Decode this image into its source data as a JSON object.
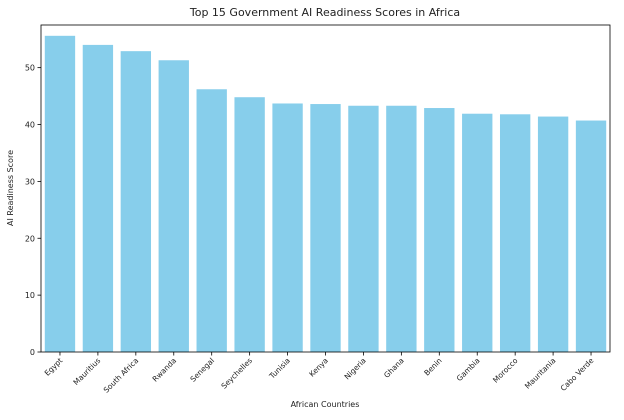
{
  "chart_data": {
    "type": "bar",
    "title": "Top 15 Government AI Readiness Scores in Africa",
    "xlabel": "African Countries",
    "ylabel": "AI Readiness Score",
    "categories": [
      "Egypt",
      "Mauritius",
      "South Africa",
      "Rwanda",
      "Senegal",
      "Seychelles",
      "Tunisia",
      "Kenya",
      "Nigeria",
      "Ghana",
      "Benin",
      "Gambia",
      "Morocco",
      "Mauritania",
      "Cabo Verde"
    ],
    "values": [
      55.6,
      54.0,
      52.9,
      51.3,
      46.2,
      44.8,
      43.7,
      43.6,
      43.3,
      43.3,
      42.9,
      41.9,
      41.8,
      41.4,
      40.7
    ],
    "ylim": [
      0,
      57.5
    ],
    "yticks": [
      0,
      10,
      20,
      30,
      40,
      50
    ],
    "bar_color": "#87ceeb",
    "grid": false,
    "legend": "none"
  }
}
